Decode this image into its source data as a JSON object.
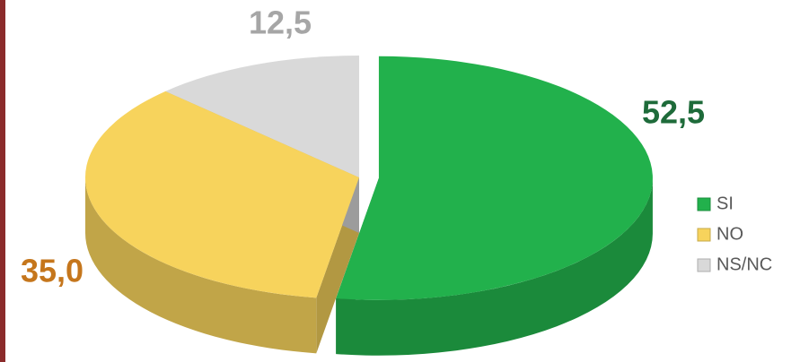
{
  "chart_data": {
    "type": "pie",
    "categories": [
      "SI",
      "NO",
      "NS/NC"
    ],
    "values": [
      52.5,
      35.0,
      12.5
    ],
    "value_labels": [
      "52,5",
      "35,0",
      "12,5"
    ],
    "colors": [
      "#22b14c",
      "#f7d35c",
      "#d9d9d9"
    ],
    "legend": "right"
  }
}
